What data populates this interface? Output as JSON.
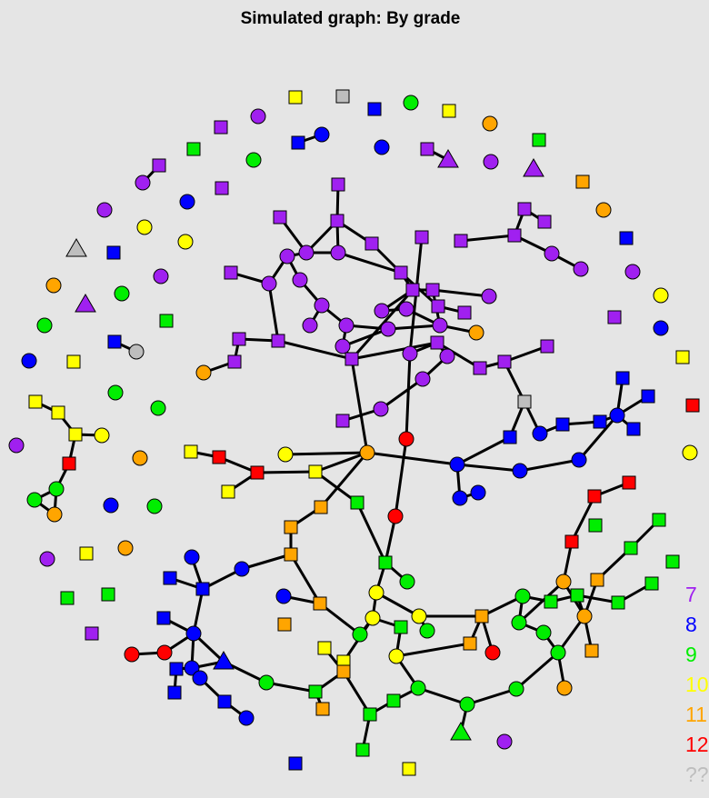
{
  "title": "Simulated graph: By grade",
  "colors": {
    "7": "#a020f0",
    "8": "#0000ff",
    "9": "#00ee00",
    "10": "#ffff00",
    "11": "#ffa500",
    "12": "#ff0000",
    "unknown": "#bebebe"
  },
  "legend": [
    {
      "label": "7",
      "key": "7"
    },
    {
      "label": "8",
      "key": "8"
    },
    {
      "label": "9",
      "key": "9"
    },
    {
      "label": "10",
      "key": "10"
    },
    {
      "label": "11",
      "key": "11"
    },
    {
      "label": "12",
      "key": "12"
    },
    {
      "label": "??",
      "key": "unknown"
    }
  ]
}
